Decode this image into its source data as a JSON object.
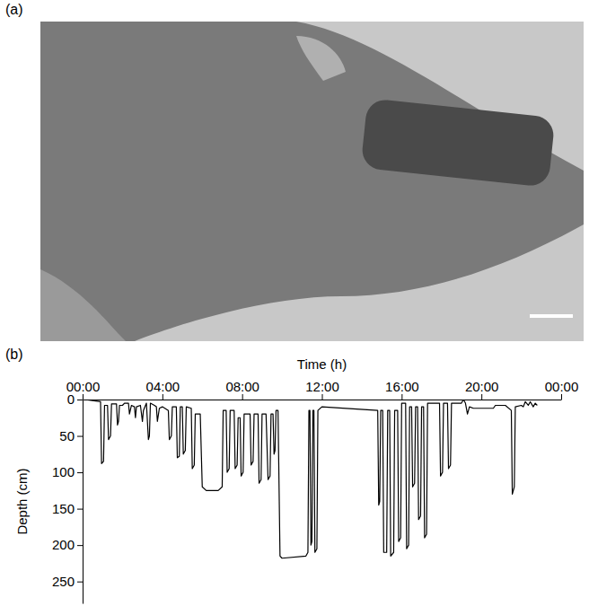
{
  "panels": {
    "a": "(a)",
    "b": "(b)"
  },
  "chart_data": {
    "type": "line",
    "x_label": "Time (h)",
    "y_label": "Depth (cm)",
    "xlim": [
      0,
      24
    ],
    "xticks": [
      {
        "value": 0,
        "label": "00:00"
      },
      {
        "value": 4,
        "label": "04:00"
      },
      {
        "value": 8,
        "label": "08:00"
      },
      {
        "value": 12,
        "label": "12:00"
      },
      {
        "value": 16,
        "label": "16:00"
      },
      {
        "value": 20,
        "label": "20:00"
      },
      {
        "value": 24,
        "label": "00:00"
      }
    ],
    "ylim": [
      0,
      280
    ],
    "yticks": [
      0,
      50,
      100,
      150,
      200,
      250
    ],
    "color": "#000000",
    "x": [
      0.1,
      0.9,
      0.95,
      1.05,
      1.1,
      1.25,
      1.3,
      1.4,
      1.45,
      1.7,
      1.75,
      1.8,
      1.85,
      2.0,
      2.1,
      2.3,
      2.35,
      2.45,
      2.6,
      2.65,
      2.7,
      2.9,
      3.0,
      3.05,
      3.2,
      3.3,
      3.35,
      3.4,
      3.6,
      3.7,
      3.75,
      3.85,
      4.0,
      4.3,
      4.35,
      4.45,
      4.5,
      4.7,
      4.75,
      4.85,
      4.9,
      5.0,
      5.05,
      5.15,
      5.2,
      5.45,
      5.5,
      5.6,
      5.65,
      5.9,
      6.0,
      6.2,
      6.8,
      7.0,
      7.05,
      7.2,
      7.25,
      7.35,
      7.4,
      7.6,
      7.65,
      7.75,
      7.8,
      7.9,
      7.95,
      8.05,
      8.1,
      8.4,
      8.45,
      8.55,
      8.6,
      8.8,
      8.85,
      8.95,
      9.0,
      9.2,
      9.3,
      9.4,
      9.45,
      9.55,
      9.6,
      9.65,
      9.7,
      9.8,
      9.9,
      10.0,
      11.2,
      11.3,
      11.35,
      11.4,
      11.45,
      11.5,
      11.55,
      11.6,
      11.65,
      11.75,
      11.8,
      12.0,
      14.8,
      14.85,
      14.9,
      14.95,
      15.05,
      15.1,
      15.25,
      15.3,
      15.4,
      15.45,
      15.6,
      15.65,
      15.8,
      15.85,
      15.95,
      16.0,
      16.2,
      16.25,
      16.35,
      16.4,
      16.5,
      16.55,
      16.65,
      16.7,
      16.8,
      16.85,
      16.95,
      17.0,
      17.1,
      17.15,
      17.25,
      17.3,
      17.9,
      17.95,
      18.05,
      18.1,
      18.3,
      18.35,
      18.45,
      18.5,
      19.0,
      19.1,
      19.2,
      19.3,
      19.4,
      19.6,
      20.6,
      20.7,
      21.2,
      21.5,
      21.55,
      21.65,
      21.7,
      22.0,
      22.1,
      22.2,
      22.35,
      22.45,
      22.6,
      22.7,
      22.8
    ],
    "values": [
      0,
      3,
      88,
      85,
      8,
      8,
      55,
      50,
      6,
      6,
      35,
      30,
      8,
      8,
      5,
      5,
      20,
      8,
      10,
      25,
      10,
      8,
      30,
      15,
      5,
      55,
      50,
      5,
      8,
      10,
      30,
      12,
      10,
      15,
      55,
      50,
      10,
      10,
      80,
      78,
      10,
      10,
      75,
      70,
      10,
      12,
      95,
      90,
      20,
      20,
      120,
      125,
      125,
      120,
      15,
      15,
      100,
      95,
      15,
      15,
      95,
      90,
      25,
      25,
      105,
      100,
      20,
      20,
      90,
      85,
      20,
      20,
      115,
      110,
      20,
      20,
      110,
      105,
      20,
      20,
      75,
      70,
      15,
      15,
      215,
      218,
      215,
      210,
      15,
      15,
      200,
      195,
      15,
      15,
      210,
      205,
      15,
      10,
      15,
      145,
      140,
      15,
      15,
      210,
      210,
      15,
      15,
      215,
      210,
      15,
      15,
      195,
      190,
      5,
      5,
      205,
      200,
      10,
      10,
      120,
      115,
      10,
      10,
      165,
      160,
      10,
      10,
      190,
      185,
      5,
      5,
      105,
      100,
      5,
      5,
      95,
      90,
      5,
      5,
      0,
      5,
      20,
      10,
      12,
      12,
      8,
      8,
      15,
      130,
      120,
      10,
      8,
      10,
      3,
      8,
      3,
      10,
      5,
      8
    ]
  }
}
